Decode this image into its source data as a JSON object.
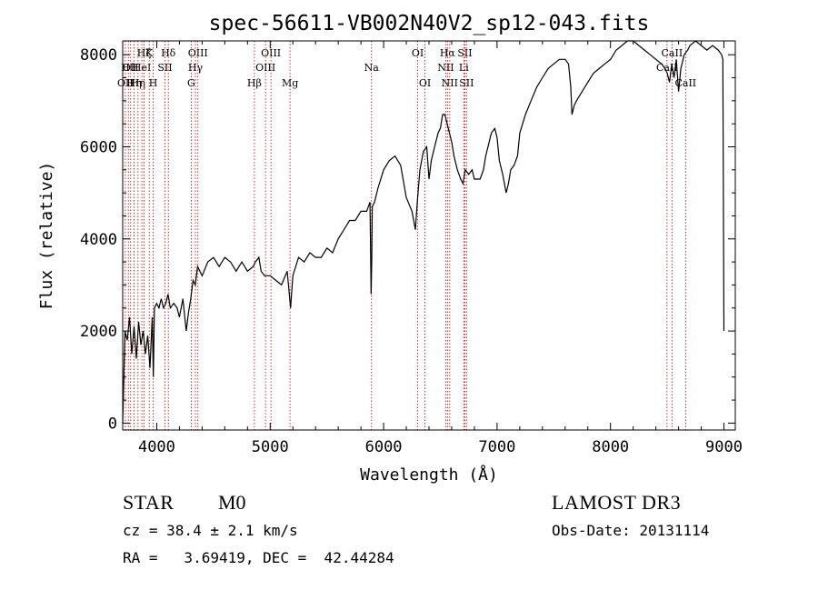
{
  "chart_data": {
    "type": "line",
    "title": "spec-56611-VB002N40V2_sp12-043.fits",
    "xlabel": "Wavelength (Å)",
    "ylabel": "Flux (relative)",
    "xlim": [
      3700,
      9100
    ],
    "ylim": [
      -150,
      8300
    ],
    "xticks": [
      4000,
      5000,
      6000,
      7000,
      8000,
      9000
    ],
    "yticks": [
      0,
      2000,
      4000,
      6000,
      8000
    ],
    "line_color": "#000000",
    "marker_color": "#cc0000",
    "series": [
      {
        "name": "flux",
        "x": [
          3700,
          3720,
          3740,
          3760,
          3780,
          3800,
          3820,
          3840,
          3860,
          3880,
          3900,
          3920,
          3940,
          3960,
          3970,
          3980,
          4000,
          4020,
          4040,
          4060,
          4080,
          4100,
          4120,
          4150,
          4180,
          4200,
          4230,
          4260,
          4280,
          4300,
          4320,
          4340,
          4360,
          4400,
          4450,
          4500,
          4550,
          4600,
          4650,
          4700,
          4750,
          4800,
          4850,
          4870,
          4900,
          4920,
          4950,
          5000,
          5050,
          5100,
          5150,
          5180,
          5200,
          5250,
          5300,
          5350,
          5400,
          5450,
          5500,
          5550,
          5600,
          5650,
          5700,
          5750,
          5800,
          5850,
          5880,
          5890,
          5895,
          5900,
          5920,
          5950,
          6000,
          6050,
          6100,
          6150,
          6200,
          6250,
          6280,
          6300,
          6320,
          6350,
          6380,
          6400,
          6420,
          6450,
          6480,
          6500,
          6520,
          6540,
          6560,
          6580,
          6600,
          6620,
          6650,
          6680,
          6700,
          6720,
          6750,
          6780,
          6800,
          6850,
          6880,
          6900,
          6920,
          6950,
          6980,
          7000,
          7020,
          7050,
          7080,
          7100,
          7120,
          7150,
          7180,
          7200,
          7250,
          7300,
          7350,
          7400,
          7450,
          7500,
          7550,
          7600,
          7630,
          7650,
          7660,
          7680,
          7700,
          7750,
          7800,
          7850,
          7900,
          7950,
          8000,
          8050,
          8100,
          8150,
          8200,
          8250,
          8300,
          8350,
          8400,
          8450,
          8480,
          8500,
          8520,
          8540,
          8560,
          8580,
          8600,
          8620,
          8650,
          8680,
          8700,
          8750,
          8800,
          8850,
          8900,
          8950,
          8980,
          8990,
          9000
        ],
        "values": [
          0,
          2000,
          1800,
          2300,
          1500,
          2100,
          1400,
          2200,
          1700,
          2000,
          1500,
          1900,
          1200,
          2300,
          1000,
          2500,
          2600,
          2500,
          2700,
          2500,
          2600,
          2800,
          2500,
          2600,
          2500,
          2300,
          2700,
          2000,
          2400,
          2700,
          3100,
          3000,
          3400,
          3200,
          3500,
          3600,
          3400,
          3600,
          3500,
          3300,
          3500,
          3300,
          3400,
          3500,
          3600,
          3300,
          3200,
          3200,
          3100,
          3000,
          3300,
          2500,
          3200,
          3600,
          3500,
          3700,
          3600,
          3600,
          3800,
          3700,
          4000,
          4200,
          4400,
          4400,
          4600,
          4600,
          4800,
          2800,
          3500,
          4700,
          4800,
          5100,
          5500,
          5700,
          5800,
          5600,
          4900,
          4600,
          4200,
          4900,
          5500,
          5900,
          6000,
          5300,
          5700,
          6000,
          6300,
          6400,
          6700,
          6700,
          6500,
          6300,
          6100,
          5800,
          5500,
          5300,
          5200,
          5500,
          5400,
          5500,
          5300,
          5300,
          5500,
          5800,
          6000,
          6300,
          6400,
          6200,
          5700,
          5400,
          5000,
          5200,
          5500,
          5600,
          5800,
          6300,
          6700,
          7000,
          7300,
          7500,
          7700,
          7800,
          7900,
          7900,
          7800,
          7300,
          6700,
          6900,
          7000,
          7200,
          7400,
          7600,
          7700,
          7800,
          7900,
          8100,
          8200,
          8300,
          8300,
          8200,
          8100,
          8000,
          7900,
          7800,
          7700,
          7600,
          7400,
          7800,
          7500,
          7900,
          7200,
          7700,
          8000,
          8100,
          8200,
          8300,
          8200,
          8100,
          8200,
          8100,
          8000,
          7900,
          2000
        ]
      }
    ],
    "line_markers": [
      {
        "x": 3723,
        "label": "OII",
        "row": 2
      },
      {
        "x": 3750,
        "label": "Hθ",
        "row": 1
      },
      {
        "x": 3770,
        "label": "OII",
        "row": 1
      },
      {
        "x": 3800,
        "label": "Hη",
        "row": 2
      },
      {
        "x": 3835,
        "label": "Hη",
        "row": 2
      },
      {
        "x": 3869,
        "label": "HeI",
        "row": 1
      },
      {
        "x": 3889,
        "label": "Hζ",
        "row": 0
      },
      {
        "x": 3934,
        "label": "K",
        "row": 0
      },
      {
        "x": 3969,
        "label": "H",
        "row": 2
      },
      {
        "x": 4072,
        "label": "SII",
        "row": 1
      },
      {
        "x": 4102,
        "label": "Hδ",
        "row": 0
      },
      {
        "x": 4304,
        "label": "G",
        "row": 2
      },
      {
        "x": 4341,
        "label": "Hγ",
        "row": 1
      },
      {
        "x": 4363,
        "label": "OIII",
        "row": 0
      },
      {
        "x": 4861,
        "label": "Hβ",
        "row": 2
      },
      {
        "x": 4959,
        "label": "OIII",
        "row": 1
      },
      {
        "x": 5007,
        "label": "OIII",
        "row": 0
      },
      {
        "x": 5175,
        "label": "Mg",
        "row": 2
      },
      {
        "x": 5893,
        "label": "Na",
        "row": 1
      },
      {
        "x": 6300,
        "label": "OI",
        "row": 0
      },
      {
        "x": 6364,
        "label": "OI",
        "row": 2
      },
      {
        "x": 6548,
        "label": "NII",
        "row": 1
      },
      {
        "x": 6563,
        "label": "Hα",
        "row": 0
      },
      {
        "x": 6583,
        "label": "NII",
        "row": 2
      },
      {
        "x": 6707,
        "label": "Li",
        "row": 1
      },
      {
        "x": 6716,
        "label": "SII",
        "row": 0
      },
      {
        "x": 6731,
        "label": "SII",
        "row": 2
      },
      {
        "x": 8498,
        "label": "CaII",
        "row": 1
      },
      {
        "x": 8542,
        "label": "CaII",
        "row": 0
      },
      {
        "x": 8662,
        "label": "CaII",
        "row": 2
      }
    ]
  },
  "footer": {
    "object_class": "STAR",
    "subclass": "M0",
    "survey": "LAMOST DR3",
    "cz": "cz = 38.4 ± 2.1 km/s",
    "obs_date": "Obs-Date: 20131114",
    "radec": "RA =   3.69419, DEC =  42.44284"
  }
}
